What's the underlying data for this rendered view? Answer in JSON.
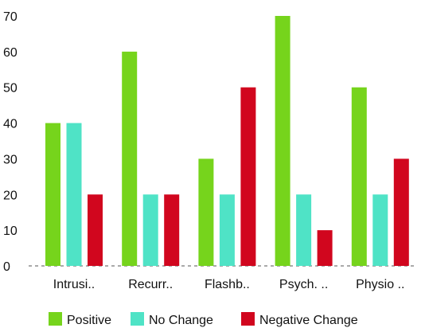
{
  "chart_data": {
    "type": "bar",
    "categories": [
      "Intrusi..",
      "Recurr..",
      "Flashb..",
      "Psych. ..",
      "Physio .."
    ],
    "series": [
      {
        "name": "Positive",
        "color": "#76d41c",
        "values": [
          40,
          60,
          30,
          70,
          50
        ]
      },
      {
        "name": "No Change",
        "color": "#4fe3c6",
        "values": [
          40,
          20,
          20,
          20,
          20
        ]
      },
      {
        "name": "Negative Change",
        "color": "#d1061e",
        "values": [
          20,
          20,
          50,
          10,
          30
        ]
      }
    ],
    "yticks": [
      0,
      10,
      20,
      30,
      40,
      50,
      60,
      70
    ],
    "ylim": [
      0,
      70
    ],
    "grid": false,
    "legend_position": "bottom"
  }
}
